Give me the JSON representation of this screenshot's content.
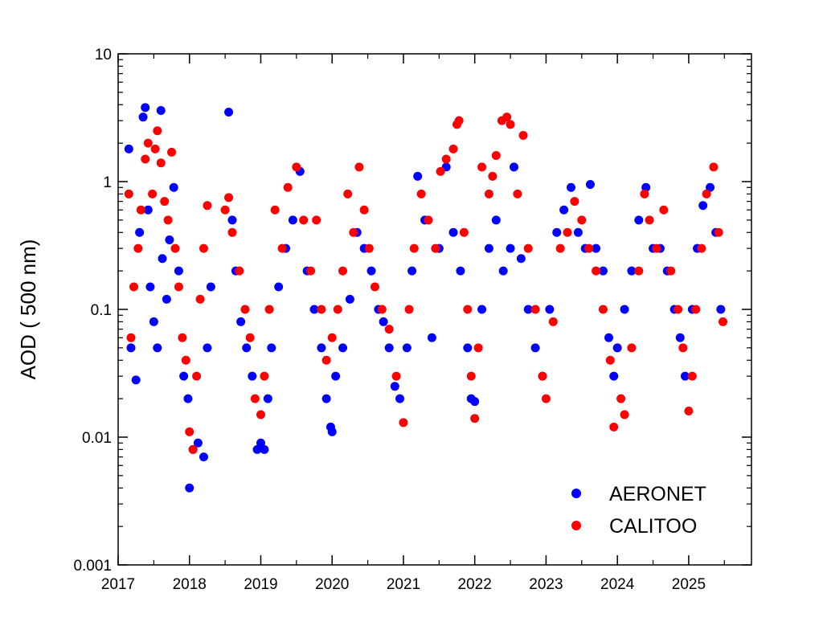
{
  "chart_data": {
    "type": "scatter",
    "title": "",
    "xlabel": "",
    "ylabel": "AOD ( 500 nm)",
    "xlim": [
      2017,
      2025.88
    ],
    "ylim": [
      0.001,
      10
    ],
    "yscale": "log",
    "grid": false,
    "legend_position": "bottom-right",
    "x_ticks": [
      "2017",
      "2018",
      "2019",
      "2020",
      "2021",
      "2022",
      "2023",
      "2024",
      "2025"
    ],
    "y_ticks": [
      "0.001",
      "0.01",
      "0.1",
      "1",
      "10"
    ],
    "series": [
      {
        "name": "AERONET",
        "color": "#0000ff",
        "points": [
          [
            2017.15,
            1.8
          ],
          [
            2017.18,
            0.05
          ],
          [
            2017.25,
            0.028
          ],
          [
            2017.3,
            0.4
          ],
          [
            2017.35,
            3.2
          ],
          [
            2017.38,
            3.8
          ],
          [
            2017.42,
            0.6
          ],
          [
            2017.45,
            0.15
          ],
          [
            2017.5,
            0.08
          ],
          [
            2017.55,
            0.05
          ],
          [
            2017.6,
            3.6
          ],
          [
            2017.62,
            0.25
          ],
          [
            2017.68,
            0.12
          ],
          [
            2017.72,
            0.35
          ],
          [
            2017.78,
            0.9
          ],
          [
            2017.85,
            0.2
          ],
          [
            2017.92,
            0.03
          ],
          [
            2017.98,
            0.02
          ],
          [
            2018.0,
            0.004
          ],
          [
            2018.05,
            0.008
          ],
          [
            2018.12,
            0.009
          ],
          [
            2018.2,
            0.007
          ],
          [
            2018.25,
            0.05
          ],
          [
            2018.3,
            0.15
          ],
          [
            2018.55,
            3.5
          ],
          [
            2018.6,
            0.5
          ],
          [
            2018.65,
            0.2
          ],
          [
            2018.72,
            0.08
          ],
          [
            2018.8,
            0.05
          ],
          [
            2018.88,
            0.03
          ],
          [
            2018.95,
            0.008
          ],
          [
            2019.0,
            0.009
          ],
          [
            2019.05,
            0.008
          ],
          [
            2019.1,
            0.02
          ],
          [
            2019.15,
            0.05
          ],
          [
            2019.25,
            0.15
          ],
          [
            2019.35,
            0.3
          ],
          [
            2019.45,
            0.5
          ],
          [
            2019.55,
            1.2
          ],
          [
            2019.65,
            0.2
          ],
          [
            2019.75,
            0.1
          ],
          [
            2019.85,
            0.05
          ],
          [
            2019.92,
            0.02
          ],
          [
            2019.98,
            0.012
          ],
          [
            2020.0,
            0.011
          ],
          [
            2020.05,
            0.03
          ],
          [
            2020.15,
            0.05
          ],
          [
            2020.25,
            0.12
          ],
          [
            2020.35,
            0.4
          ],
          [
            2020.45,
            0.3
          ],
          [
            2020.55,
            0.2
          ],
          [
            2020.65,
            0.1
          ],
          [
            2020.72,
            0.08
          ],
          [
            2020.8,
            0.05
          ],
          [
            2020.88,
            0.025
          ],
          [
            2020.95,
            0.02
          ],
          [
            2021.05,
            0.05
          ],
          [
            2021.12,
            0.2
          ],
          [
            2021.2,
            1.1
          ],
          [
            2021.3,
            0.5
          ],
          [
            2021.4,
            0.06
          ],
          [
            2021.5,
            0.3
          ],
          [
            2021.6,
            1.3
          ],
          [
            2021.7,
            0.4
          ],
          [
            2021.8,
            0.2
          ],
          [
            2021.9,
            0.05
          ],
          [
            2021.95,
            0.02
          ],
          [
            2022.0,
            0.019
          ],
          [
            2022.1,
            0.1
          ],
          [
            2022.2,
            0.3
          ],
          [
            2022.3,
            0.5
          ],
          [
            2022.4,
            0.2
          ],
          [
            2022.5,
            0.3
          ],
          [
            2022.55,
            1.3
          ],
          [
            2022.65,
            0.25
          ],
          [
            2022.75,
            0.1
          ],
          [
            2022.85,
            0.05
          ],
          [
            2022.95,
            0.03
          ],
          [
            2023.05,
            0.1
          ],
          [
            2023.15,
            0.4
          ],
          [
            2023.25,
            0.6
          ],
          [
            2023.35,
            0.9
          ],
          [
            2023.45,
            0.4
          ],
          [
            2023.55,
            0.3
          ],
          [
            2023.62,
            0.95
          ],
          [
            2023.7,
            0.3
          ],
          [
            2023.8,
            0.2
          ],
          [
            2023.88,
            0.06
          ],
          [
            2023.95,
            0.03
          ],
          [
            2024.0,
            0.05
          ],
          [
            2024.1,
            0.1
          ],
          [
            2024.2,
            0.2
          ],
          [
            2024.3,
            0.5
          ],
          [
            2024.4,
            0.9
          ],
          [
            2024.5,
            0.3
          ],
          [
            2024.6,
            0.3
          ],
          [
            2024.7,
            0.2
          ],
          [
            2024.8,
            0.1
          ],
          [
            2024.88,
            0.06
          ],
          [
            2024.95,
            0.03
          ],
          [
            2025.05,
            0.1
          ],
          [
            2025.12,
            0.3
          ],
          [
            2025.2,
            0.65
          ],
          [
            2025.3,
            0.9
          ],
          [
            2025.38,
            0.4
          ],
          [
            2025.45,
            0.1
          ]
        ]
      },
      {
        "name": "CALITOO",
        "color": "#ff0000",
        "points": [
          [
            2017.15,
            0.8
          ],
          [
            2017.18,
            0.06
          ],
          [
            2017.22,
            0.15
          ],
          [
            2017.28,
            0.3
          ],
          [
            2017.32,
            0.6
          ],
          [
            2017.38,
            1.5
          ],
          [
            2017.42,
            2.0
          ],
          [
            2017.48,
            0.8
          ],
          [
            2017.52,
            1.8
          ],
          [
            2017.55,
            2.5
          ],
          [
            2017.6,
            1.4
          ],
          [
            2017.65,
            0.7
          ],
          [
            2017.7,
            0.5
          ],
          [
            2017.75,
            1.7
          ],
          [
            2017.8,
            0.3
          ],
          [
            2017.85,
            0.15
          ],
          [
            2017.9,
            0.06
          ],
          [
            2017.95,
            0.04
          ],
          [
            2018.0,
            0.011
          ],
          [
            2018.05,
            0.008
          ],
          [
            2018.1,
            0.03
          ],
          [
            2018.15,
            0.12
          ],
          [
            2018.2,
            0.3
          ],
          [
            2018.25,
            0.65
          ],
          [
            2018.5,
            0.6
          ],
          [
            2018.55,
            0.75
          ],
          [
            2018.6,
            0.4
          ],
          [
            2018.7,
            0.2
          ],
          [
            2018.78,
            0.1
          ],
          [
            2018.85,
            0.06
          ],
          [
            2018.92,
            0.02
          ],
          [
            2019.0,
            0.015
          ],
          [
            2019.05,
            0.03
          ],
          [
            2019.12,
            0.1
          ],
          [
            2019.2,
            0.6
          ],
          [
            2019.3,
            0.3
          ],
          [
            2019.38,
            0.9
          ],
          [
            2019.5,
            1.3
          ],
          [
            2019.6,
            0.5
          ],
          [
            2019.7,
            0.2
          ],
          [
            2019.78,
            0.5
          ],
          [
            2019.85,
            0.1
          ],
          [
            2019.92,
            0.04
          ],
          [
            2020.0,
            0.06
          ],
          [
            2020.08,
            0.1
          ],
          [
            2020.15,
            0.2
          ],
          [
            2020.22,
            0.8
          ],
          [
            2020.3,
            0.4
          ],
          [
            2020.38,
            1.3
          ],
          [
            2020.45,
            0.6
          ],
          [
            2020.52,
            0.3
          ],
          [
            2020.6,
            0.15
          ],
          [
            2020.7,
            0.1
          ],
          [
            2020.8,
            0.07
          ],
          [
            2020.9,
            0.03
          ],
          [
            2021.0,
            0.013
          ],
          [
            2021.08,
            0.1
          ],
          [
            2021.15,
            0.3
          ],
          [
            2021.25,
            0.8
          ],
          [
            2021.35,
            0.5
          ],
          [
            2021.45,
            0.3
          ],
          [
            2021.52,
            1.2
          ],
          [
            2021.6,
            1.5
          ],
          [
            2021.7,
            1.8
          ],
          [
            2021.75,
            2.8
          ],
          [
            2021.78,
            3.0
          ],
          [
            2021.85,
            0.4
          ],
          [
            2021.9,
            0.1
          ],
          [
            2021.95,
            0.03
          ],
          [
            2022.0,
            0.014
          ],
          [
            2022.05,
            0.05
          ],
          [
            2022.1,
            1.3
          ],
          [
            2022.2,
            0.8
          ],
          [
            2022.25,
            1.1
          ],
          [
            2022.3,
            1.6
          ],
          [
            2022.38,
            3.0
          ],
          [
            2022.45,
            3.2
          ],
          [
            2022.5,
            2.8
          ],
          [
            2022.6,
            0.8
          ],
          [
            2022.68,
            2.3
          ],
          [
            2022.75,
            0.3
          ],
          [
            2022.85,
            0.1
          ],
          [
            2022.95,
            0.03
          ],
          [
            2023.0,
            0.02
          ],
          [
            2023.1,
            0.08
          ],
          [
            2023.2,
            0.3
          ],
          [
            2023.3,
            0.4
          ],
          [
            2023.4,
            0.7
          ],
          [
            2023.5,
            0.5
          ],
          [
            2023.6,
            0.3
          ],
          [
            2023.7,
            0.2
          ],
          [
            2023.8,
            0.1
          ],
          [
            2023.9,
            0.04
          ],
          [
            2023.95,
            0.012
          ],
          [
            2024.05,
            0.02
          ],
          [
            2024.1,
            0.015
          ],
          [
            2024.2,
            0.05
          ],
          [
            2024.3,
            0.2
          ],
          [
            2024.38,
            0.8
          ],
          [
            2024.45,
            0.5
          ],
          [
            2024.55,
            0.3
          ],
          [
            2024.65,
            0.6
          ],
          [
            2024.75,
            0.2
          ],
          [
            2024.85,
            0.1
          ],
          [
            2024.92,
            0.05
          ],
          [
            2025.0,
            0.016
          ],
          [
            2025.05,
            0.03
          ],
          [
            2025.1,
            0.1
          ],
          [
            2025.18,
            0.3
          ],
          [
            2025.25,
            0.8
          ],
          [
            2025.35,
            1.3
          ],
          [
            2025.42,
            0.4
          ],
          [
            2025.48,
            0.08
          ]
        ]
      }
    ]
  }
}
